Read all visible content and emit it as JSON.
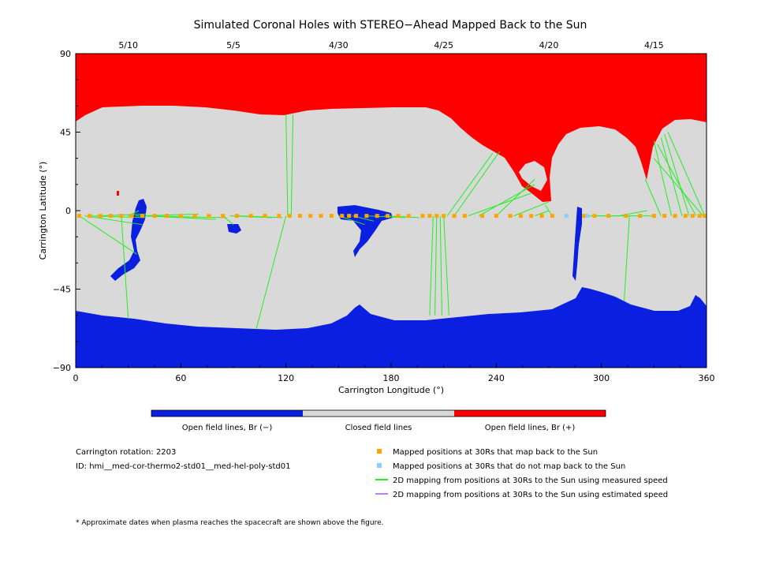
{
  "chart_data": {
    "type": "map",
    "title": "Simulated Coronal Holes with STEREO−Ahead Mapped Back to the Sun",
    "xlabel": "Carrington Longitude (°)",
    "ylabel": "Carrington Latitude (°)",
    "xlim": [
      0,
      360
    ],
    "ylim": [
      -90,
      90
    ],
    "x_ticks": [
      "0",
      "60",
      "120",
      "180",
      "240",
      "300",
      "360"
    ],
    "y_ticks": [
      "90",
      "45",
      "0",
      "−45",
      "−90"
    ],
    "top_dates": [
      {
        "label": "5/10",
        "lon": 30
      },
      {
        "label": "5/5",
        "lon": 90
      },
      {
        "label": "4/30",
        "lon": 150
      },
      {
        "label": "4/25",
        "lon": 210
      },
      {
        "label": "4/20",
        "lon": 270
      },
      {
        "label": "4/15",
        "lon": 330
      }
    ],
    "colors": {
      "open_negative": "#0a1fe0",
      "closed": "#d9d9d9",
      "open_positive": "#ff0000",
      "mapped": "#ffa500",
      "not_mapped": "#87cefa",
      "measured": "#22ee22",
      "estimated": "#c080f0"
    },
    "mapped_points_latitude": -3,
    "mapped_points_lon": [
      2,
      8,
      14,
      20,
      26,
      32,
      38,
      45,
      52,
      60,
      68,
      76,
      84,
      92,
      100,
      108,
      116,
      122,
      128,
      134,
      140,
      146,
      152,
      156,
      160,
      166,
      172,
      178,
      184,
      190,
      198,
      202,
      206,
      210,
      216,
      222,
      232,
      240,
      248,
      254,
      260,
      266,
      272,
      290,
      296,
      304,
      314,
      322,
      330,
      336,
      342,
      348,
      352,
      356,
      359
    ],
    "not_mapped_points_lon": [
      280,
      292
    ],
    "measured_lines": [
      [
        2,
        -3,
        35,
        -25
      ],
      [
        5,
        -3,
        38,
        -8
      ],
      [
        8,
        -3,
        40,
        -4
      ],
      [
        12,
        -3,
        40,
        -2
      ],
      [
        30,
        -3,
        36,
        0
      ],
      [
        38,
        -3,
        70,
        -2
      ],
      [
        40,
        -3,
        80,
        -5
      ],
      [
        34,
        -3,
        86,
        -4
      ],
      [
        26,
        -3,
        30,
        -62
      ],
      [
        84,
        -3,
        90,
        -8
      ],
      [
        88,
        -3,
        112,
        -4
      ],
      [
        92,
        -3,
        118,
        -4
      ],
      [
        120,
        -3,
        103,
        -68
      ],
      [
        121,
        -3,
        120,
        55
      ],
      [
        123,
        -3,
        124,
        55
      ],
      [
        150,
        -3,
        165,
        -8
      ],
      [
        158,
        -3,
        170,
        -6
      ],
      [
        166,
        -3,
        188,
        -4
      ],
      [
        176,
        -3,
        196,
        -4
      ],
      [
        204,
        -3,
        202,
        -60
      ],
      [
        206,
        -3,
        205,
        -60
      ],
      [
        208,
        -3,
        209,
        -60
      ],
      [
        210,
        -3,
        213,
        -60
      ],
      [
        212,
        -3,
        238,
        33
      ],
      [
        216,
        -3,
        242,
        34
      ],
      [
        224,
        -3,
        260,
        10
      ],
      [
        230,
        -3,
        262,
        15
      ],
      [
        240,
        -3,
        262,
        18
      ],
      [
        250,
        -3,
        270,
        5
      ],
      [
        262,
        -3,
        270,
        0
      ],
      [
        272,
        -3,
        268,
        3
      ],
      [
        290,
        -3,
        310,
        -3
      ],
      [
        296,
        -3,
        330,
        -3
      ],
      [
        310,
        -3,
        326,
        0
      ],
      [
        316,
        -3,
        313,
        -52
      ],
      [
        334,
        -3,
        325,
        18
      ],
      [
        340,
        -3,
        330,
        40
      ],
      [
        346,
        -3,
        334,
        42
      ],
      [
        350,
        -3,
        336,
        44
      ],
      [
        354,
        -3,
        332,
        38
      ],
      [
        358,
        -3,
        330,
        30
      ],
      [
        359,
        -3,
        338,
        45
      ]
    ]
  },
  "legend_bar": {
    "negative": "Open field lines, Br (−)",
    "closed": "Closed field lines",
    "positive": "Open field lines, Br (+)"
  },
  "info": {
    "rotation": "Carrington rotation: 2203",
    "id": "ID: hmi__med-cor-thermo2-std01__med-hel-poly-std01"
  },
  "marker_legend": {
    "mapped": "Mapped positions at 30Rs that map back to the Sun",
    "not_mapped": "Mapped positions at 30Rs that do not map back to the Sun",
    "measured": "2D mapping from positions at 30Rs to the Sun using measured speed",
    "estimated": "2D mapping from positions at 30Rs to the Sun using estimated speed"
  },
  "footnote": "* Approximate dates when plasma reaches the spacecraft are shown above the figure."
}
